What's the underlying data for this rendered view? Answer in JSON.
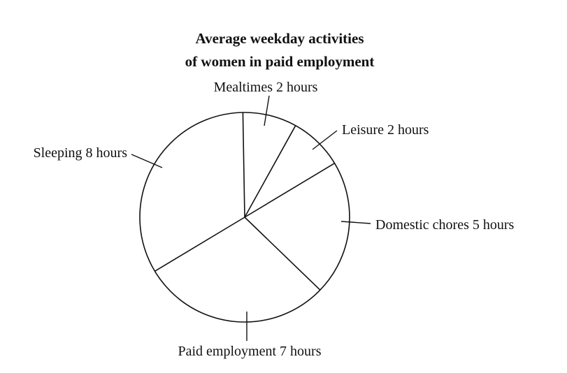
{
  "chart_data": {
    "type": "pie",
    "title_lines": [
      "Average weekday activities",
      "of women in paid employment"
    ],
    "slices": [
      {
        "name": "Mealtimes",
        "value": 2,
        "label": "Mealtimes 2 hours"
      },
      {
        "name": "Leisure",
        "value": 2,
        "label": "Leisure 2 hours"
      },
      {
        "name": "Domestic chores",
        "value": 5,
        "label": "Domestic chores 5 hours"
      },
      {
        "name": "Paid employment",
        "value": 7,
        "label": "Paid employment 7 hours"
      },
      {
        "name": "Sleeping",
        "value": 8,
        "label": "Sleeping 8 hours"
      }
    ],
    "total": 24,
    "start_direction": "top (12 o'clock)",
    "order": "clockwise",
    "colors": {
      "outline": "#111111",
      "fill": "#ffffff",
      "text": "#111111"
    }
  }
}
